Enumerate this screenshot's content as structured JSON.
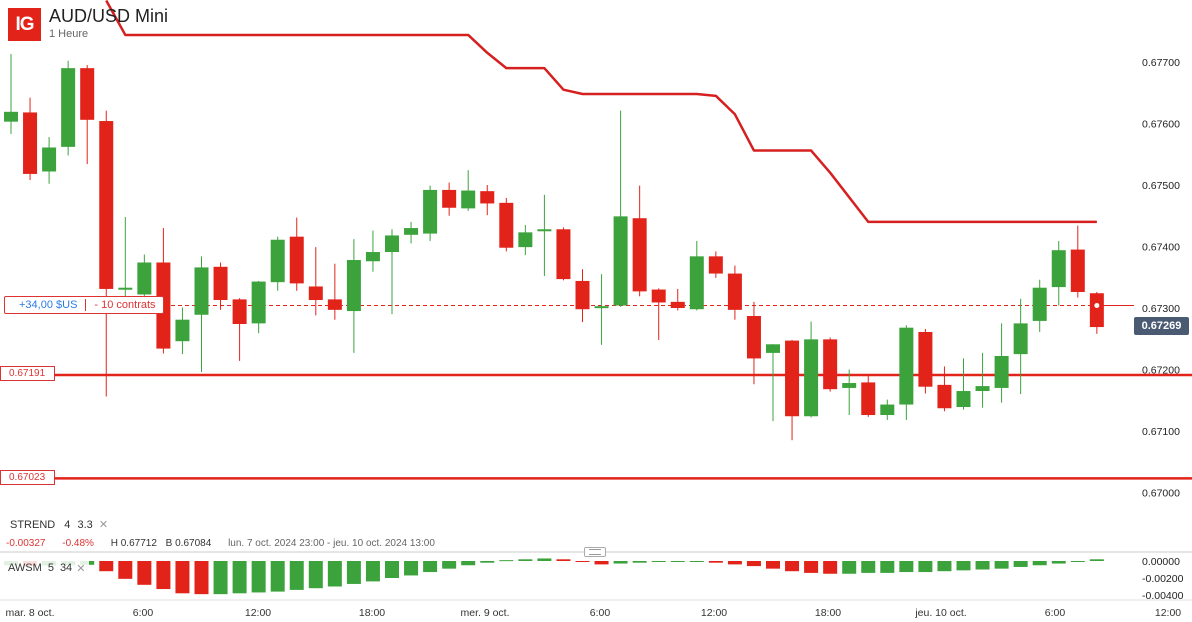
{
  "header": {
    "logo": "IG",
    "title": "AUD/USD Mini",
    "subtitle": "1 Heure"
  },
  "position": {
    "pnl": "+34,00 $US",
    "quantity": "- 10 contrats"
  },
  "levels": {
    "upper": "0.67191",
    "lower": "0.67023"
  },
  "current_price": "0.67269",
  "indicator": {
    "name": "STREND",
    "p1": "4",
    "p2": "3.3"
  },
  "stats": {
    "change": "-0.00327",
    "change_pct": "-0.48%",
    "high": "H 0.67712",
    "low": "B 0.67084",
    "range": "lun. 7 oct. 2024 23:00 - jeu. 10 oct. 2024 13:00"
  },
  "oscillator": {
    "name": "AWSM",
    "p1": "5",
    "p2": "34"
  },
  "colors": {
    "up": "#3ca33c",
    "down": "#e2231a",
    "supertrend": "#d62020",
    "badge": "#4a5a73"
  },
  "chart_data": {
    "type": "candlestick",
    "instrument": "AUD/USD Mini",
    "interval": "1 Heure",
    "y_ticks": [
      "0.67700",
      "0.67600",
      "0.67500",
      "0.67400",
      "0.67300",
      "0.67200",
      "0.67100",
      "0.67000"
    ],
    "ylim": [
      0.6697,
      0.6779
    ],
    "x_ticks": [
      "mar. 8 oct.",
      "6:00",
      "12:00",
      "18:00",
      "mer. 9 oct.",
      "6:00",
      "12:00",
      "18:00",
      "jeu. 10 oct.",
      "6:00",
      "12:00"
    ],
    "candles": [
      {
        "o": 0.67603,
        "h": 0.67713,
        "l": 0.67583,
        "c": 0.67619
      },
      {
        "o": 0.67618,
        "h": 0.67642,
        "l": 0.67508,
        "c": 0.67518
      },
      {
        "o": 0.67522,
        "h": 0.67578,
        "l": 0.67502,
        "c": 0.67561
      },
      {
        "o": 0.67562,
        "h": 0.67702,
        "l": 0.67548,
        "c": 0.6769
      },
      {
        "o": 0.6769,
        "h": 0.67695,
        "l": 0.67534,
        "c": 0.67606
      },
      {
        "o": 0.67604,
        "h": 0.67621,
        "l": 0.67156,
        "c": 0.67331
      },
      {
        "o": 0.6733,
        "h": 0.67448,
        "l": 0.67313,
        "c": 0.67333
      },
      {
        "o": 0.67322,
        "h": 0.67387,
        "l": 0.67317,
        "c": 0.67374
      },
      {
        "o": 0.67374,
        "h": 0.6743,
        "l": 0.67226,
        "c": 0.67234
      },
      {
        "o": 0.67246,
        "h": 0.67301,
        "l": 0.67225,
        "c": 0.67281
      },
      {
        "o": 0.67289,
        "h": 0.67384,
        "l": 0.67196,
        "c": 0.67366
      },
      {
        "o": 0.67367,
        "h": 0.67374,
        "l": 0.67297,
        "c": 0.67313
      },
      {
        "o": 0.67314,
        "h": 0.67316,
        "l": 0.67214,
        "c": 0.67274
      },
      {
        "o": 0.67275,
        "h": 0.67344,
        "l": 0.67259,
        "c": 0.67343
      },
      {
        "o": 0.67342,
        "h": 0.67416,
        "l": 0.67328,
        "c": 0.67411
      },
      {
        "o": 0.67416,
        "h": 0.67447,
        "l": 0.67328,
        "c": 0.6734
      },
      {
        "o": 0.67335,
        "h": 0.67399,
        "l": 0.67288,
        "c": 0.67313
      },
      {
        "o": 0.67314,
        "h": 0.67372,
        "l": 0.67281,
        "c": 0.67297
      },
      {
        "o": 0.67295,
        "h": 0.67412,
        "l": 0.67227,
        "c": 0.67378
      },
      {
        "o": 0.67376,
        "h": 0.67426,
        "l": 0.67359,
        "c": 0.67391
      },
      {
        "o": 0.67391,
        "h": 0.67428,
        "l": 0.6729,
        "c": 0.67418
      },
      {
        "o": 0.67419,
        "h": 0.6744,
        "l": 0.67405,
        "c": 0.6743
      },
      {
        "o": 0.67421,
        "h": 0.67499,
        "l": 0.67409,
        "c": 0.67492
      },
      {
        "o": 0.67492,
        "h": 0.67504,
        "l": 0.6745,
        "c": 0.67463
      },
      {
        "o": 0.67462,
        "h": 0.67524,
        "l": 0.67458,
        "c": 0.67491
      },
      {
        "o": 0.6749,
        "h": 0.675,
        "l": 0.67451,
        "c": 0.6747
      },
      {
        "o": 0.67471,
        "h": 0.67479,
        "l": 0.67392,
        "c": 0.67398
      },
      {
        "o": 0.67399,
        "h": 0.67435,
        "l": 0.67386,
        "c": 0.67423
      },
      {
        "o": 0.67427,
        "h": 0.67484,
        "l": 0.67352,
        "c": 0.67428
      },
      {
        "o": 0.67428,
        "h": 0.67431,
        "l": 0.67345,
        "c": 0.67347
      },
      {
        "o": 0.67344,
        "h": 0.67363,
        "l": 0.67277,
        "c": 0.67298
      },
      {
        "o": 0.67301,
        "h": 0.67355,
        "l": 0.6724,
        "c": 0.67303
      },
      {
        "o": 0.67304,
        "h": 0.67621,
        "l": 0.67302,
        "c": 0.67449
      },
      {
        "o": 0.67446,
        "h": 0.67499,
        "l": 0.67319,
        "c": 0.67327
      },
      {
        "o": 0.6733,
        "h": 0.67332,
        "l": 0.67248,
        "c": 0.67309
      },
      {
        "o": 0.6731,
        "h": 0.67331,
        "l": 0.67296,
        "c": 0.673
      },
      {
        "o": 0.67298,
        "h": 0.67409,
        "l": 0.67296,
        "c": 0.67384
      },
      {
        "o": 0.67384,
        "h": 0.67392,
        "l": 0.67349,
        "c": 0.67356
      },
      {
        "o": 0.67356,
        "h": 0.67369,
        "l": 0.67281,
        "c": 0.67297
      },
      {
        "o": 0.67287,
        "h": 0.6731,
        "l": 0.67176,
        "c": 0.67218
      },
      {
        "o": 0.67227,
        "h": 0.67241,
        "l": 0.67116,
        "c": 0.67241
      },
      {
        "o": 0.67247,
        "h": 0.67248,
        "l": 0.67085,
        "c": 0.67124
      },
      {
        "o": 0.67124,
        "h": 0.67278,
        "l": 0.67122,
        "c": 0.67249
      },
      {
        "o": 0.67249,
        "h": 0.67252,
        "l": 0.67164,
        "c": 0.67168
      },
      {
        "o": 0.6717,
        "h": 0.672,
        "l": 0.67126,
        "c": 0.67178
      },
      {
        "o": 0.67179,
        "h": 0.67191,
        "l": 0.67123,
        "c": 0.67126
      },
      {
        "o": 0.67126,
        "h": 0.67151,
        "l": 0.67118,
        "c": 0.67143
      },
      {
        "o": 0.67143,
        "h": 0.67272,
        "l": 0.67118,
        "c": 0.67268
      },
      {
        "o": 0.67261,
        "h": 0.67266,
        "l": 0.67161,
        "c": 0.67172
      },
      {
        "o": 0.67175,
        "h": 0.67205,
        "l": 0.67132,
        "c": 0.67137
      },
      {
        "o": 0.67139,
        "h": 0.67218,
        "l": 0.67135,
        "c": 0.67165
      },
      {
        "o": 0.67165,
        "h": 0.67227,
        "l": 0.67138,
        "c": 0.67173
      },
      {
        "o": 0.6717,
        "h": 0.67275,
        "l": 0.67146,
        "c": 0.67222
      },
      {
        "o": 0.67225,
        "h": 0.67315,
        "l": 0.6716,
        "c": 0.67275
      },
      {
        "o": 0.67279,
        "h": 0.67346,
        "l": 0.67261,
        "c": 0.67333
      },
      {
        "o": 0.67334,
        "h": 0.67409,
        "l": 0.67304,
        "c": 0.67394
      },
      {
        "o": 0.67395,
        "h": 0.67434,
        "l": 0.67317,
        "c": 0.67326
      },
      {
        "o": 0.67324,
        "h": 0.67326,
        "l": 0.67258,
        "c": 0.67269
      }
    ],
    "supertrend": [
      {
        "i": 5,
        "v": 0.678
      },
      {
        "i": 6,
        "v": 0.67744
      },
      {
        "i": 24,
        "v": 0.67744
      },
      {
        "i": 25,
        "v": 0.67715
      },
      {
        "i": 26,
        "v": 0.6769
      },
      {
        "i": 28,
        "v": 0.6769
      },
      {
        "i": 29,
        "v": 0.67655
      },
      {
        "i": 30,
        "v": 0.67648
      },
      {
        "i": 36,
        "v": 0.67648
      },
      {
        "i": 37,
        "v": 0.67645
      },
      {
        "i": 38,
        "v": 0.67615
      },
      {
        "i": 39,
        "v": 0.67556
      },
      {
        "i": 42,
        "v": 0.67556
      },
      {
        "i": 43,
        "v": 0.6752
      },
      {
        "i": 45,
        "v": 0.6744
      },
      {
        "i": 57,
        "v": 0.6744
      }
    ],
    "horizontal_levels": [
      0.67191,
      0.67023
    ],
    "position_level": 0.67304,
    "oscillator_ticks": [
      "0.00000",
      "-0.00200",
      "-0.00400"
    ],
    "oscillator_ylim": [
      -0.0048,
      0.0004
    ],
    "awesome_oscillator": [
      -0.0005,
      -0.0006,
      -0.00055,
      -0.0005,
      -0.00045,
      -0.0012,
      -0.0021,
      -0.0028,
      -0.0033,
      -0.0038,
      -0.0039,
      -0.0039,
      -0.0038,
      -0.0037,
      -0.0036,
      -0.0034,
      -0.0032,
      -0.003,
      -0.0027,
      -0.0024,
      -0.002,
      -0.0017,
      -0.0013,
      -0.0009,
      -0.0005,
      -0.0002,
      0.0001,
      0.0002,
      0.0003,
      0.0002,
      -0.0001,
      -0.0004,
      -0.0003,
      -0.0002,
      -0.0001,
      0.0,
      0.0,
      -0.0002,
      -0.0004,
      -0.0006,
      -0.0009,
      -0.0012,
      -0.0014,
      -0.0015,
      -0.0015,
      -0.0014,
      -0.0014,
      -0.0013,
      -0.0013,
      -0.0012,
      -0.0011,
      -0.001,
      -0.0009,
      -0.0007,
      -0.0005,
      -0.0003,
      -0.0001,
      0.0002
    ]
  }
}
